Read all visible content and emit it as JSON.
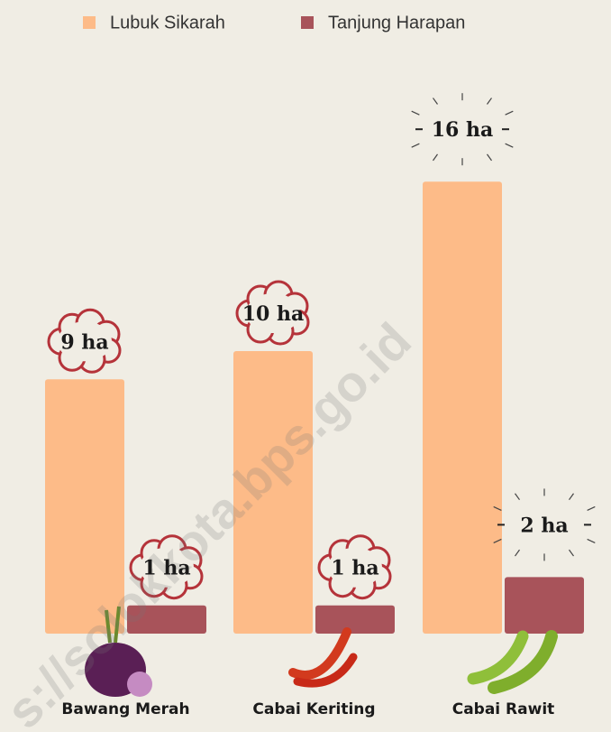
{
  "watermark": "s://solokkota.bps.go.id",
  "chart_data": {
    "type": "bar",
    "categories": [
      "Bawang Merah",
      "Cabai Keriting",
      "Cabai Rawit"
    ],
    "series": [
      {
        "name": "Lubuk Sikarah",
        "color": "#fdbb88",
        "values": [
          9,
          10,
          16
        ],
        "value_labels": [
          "9 ha",
          "10 ha",
          "16 ha"
        ]
      },
      {
        "name": "Tanjung Harapan",
        "color": "#a8535a",
        "values": [
          1,
          1,
          2
        ],
        "value_labels": [
          "1 ha",
          "1 ha",
          "2 ha"
        ]
      }
    ]
  }
}
